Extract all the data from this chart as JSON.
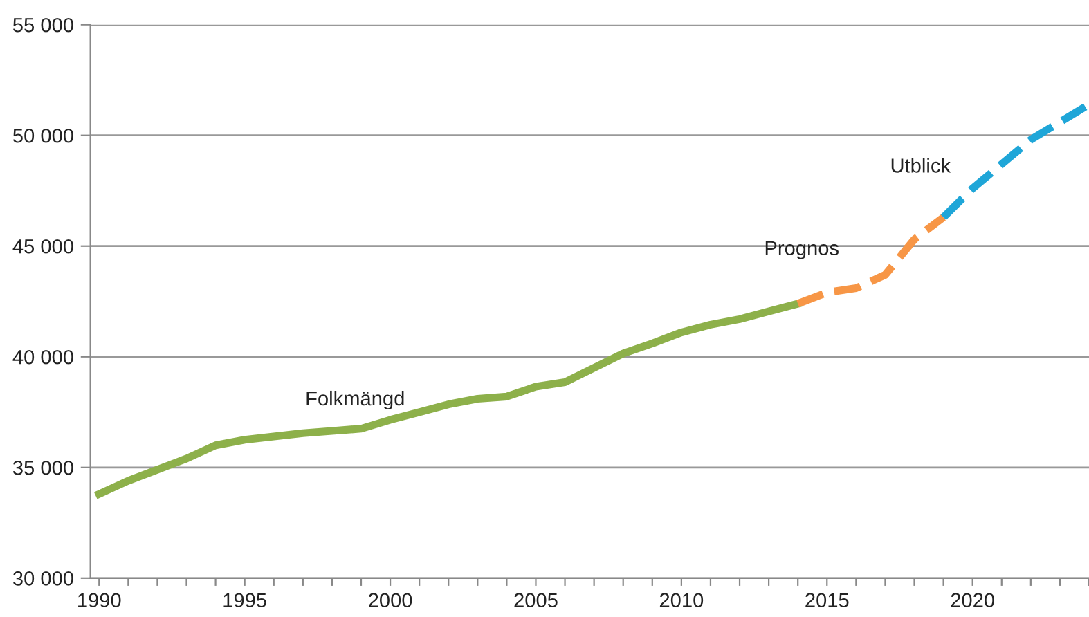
{
  "chart_data": {
    "type": "line",
    "series": [
      {
        "name": "Folkmängd",
        "color": "#8db04a",
        "line_style": "solid",
        "x": [
          1990,
          1991,
          1992,
          1993,
          1994,
          1995,
          1996,
          1997,
          1998,
          1999,
          2000,
          2001,
          2002,
          2003,
          2004,
          2005,
          2006,
          2007,
          2008,
          2009,
          2010,
          2011,
          2012,
          2013,
          2014
        ],
        "values": [
          33800,
          34400,
          34900,
          35400,
          36000,
          36250,
          36400,
          36550,
          36650,
          36750,
          37150,
          37500,
          37850,
          38100,
          38200,
          38650,
          38850,
          39500,
          40150,
          40600,
          41100,
          41450,
          41700,
          42050,
          42400
        ]
      },
      {
        "name": "Prognos",
        "color": "#f79646",
        "line_style": "dashed",
        "x": [
          2014,
          2015,
          2016,
          2017,
          2018,
          2019
        ],
        "values": [
          42400,
          42900,
          43100,
          43700,
          45300,
          46300
        ]
      },
      {
        "name": "Utblick",
        "color": "#1fa6d8",
        "line_style": "dashed",
        "x": [
          2019,
          2020,
          2021,
          2022,
          2023,
          2024
        ],
        "values": [
          46300,
          47600,
          48700,
          49800,
          50600,
          51400
        ]
      }
    ],
    "xlim": [
      1989.7,
      2024
    ],
    "xticks": [
      1990,
      {
        "value": 1991,
        "label": null
      },
      {
        "value": 1992,
        "label": null
      },
      {
        "value": 1993,
        "label": null
      },
      {
        "value": 1994,
        "label": null
      },
      1995,
      {
        "value": 1996,
        "label": null
      },
      {
        "value": 1997,
        "label": null
      },
      {
        "value": 1998,
        "label": null
      },
      {
        "value": 1999,
        "label": null
      },
      2000,
      {
        "value": 2001,
        "label": null
      },
      {
        "value": 2002,
        "label": null
      },
      {
        "value": 2003,
        "label": null
      },
      {
        "value": 2004,
        "label": null
      },
      2005,
      {
        "value": 2006,
        "label": null
      },
      {
        "value": 2007,
        "label": null
      },
      {
        "value": 2008,
        "label": null
      },
      {
        "value": 2009,
        "label": null
      },
      2010,
      {
        "value": 2011,
        "label": null
      },
      {
        "value": 2012,
        "label": null
      },
      {
        "value": 2013,
        "label": null
      },
      {
        "value": 2014,
        "label": null
      },
      2015,
      {
        "value": 2016,
        "label": null
      },
      {
        "value": 2017,
        "label": null
      },
      {
        "value": 2018,
        "label": null
      },
      {
        "value": 2019,
        "label": null
      },
      2020,
      {
        "value": 2021,
        "label": null
      },
      {
        "value": 2022,
        "label": null
      },
      {
        "value": 2023,
        "label": null
      },
      {
        "value": 2024,
        "label": null
      }
    ],
    "ylim": [
      30000,
      55000
    ],
    "yticks": [
      {
        "value": 30000,
        "label": "30 000"
      },
      {
        "value": 35000,
        "label": "35 000"
      },
      {
        "value": 40000,
        "label": "40 000"
      },
      {
        "value": 45000,
        "label": "45 000"
      },
      {
        "value": 50000,
        "label": "50 000"
      },
      {
        "value": 55000,
        "label": "55 000"
      }
    ],
    "grid": "y",
    "legend": false,
    "marker": "none"
  }
}
